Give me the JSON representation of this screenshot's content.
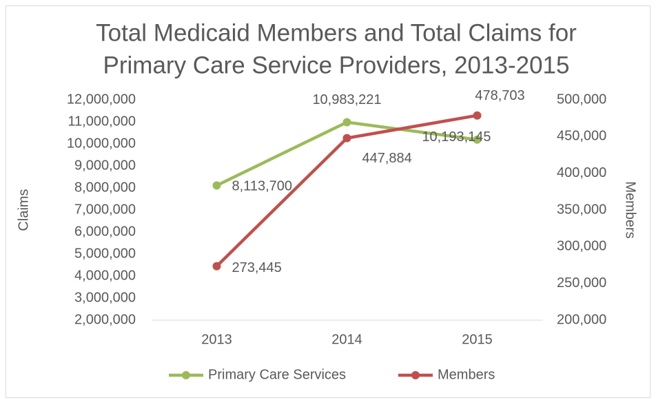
{
  "chart_data": {
    "type": "line",
    "title": [
      "Total Medicaid Members and Total Claims for",
      "Primary Care Service Providers, 2013-2015"
    ],
    "y_label": "Claims",
    "y2_label": "Members",
    "categories": [
      "2013",
      "2014",
      "2015"
    ],
    "series": [
      {
        "name": "Primary Care Services",
        "color": "#9bbb59",
        "values": [
          8113700,
          10983221,
          10193145
        ],
        "value_labels": [
          "8,113,700",
          "10,983,221",
          "10,193,145"
        ]
      },
      {
        "name": "Members",
        "color": "#c0504d",
        "axis": "y2",
        "values": [
          273445,
          447884,
          478703
        ],
        "value_labels": [
          "273,445",
          "447,884",
          "478,703"
        ]
      }
    ],
    "ylim": [
      2000000,
      12000000
    ],
    "yticks": [
      {
        "value": 2000000,
        "label": "2,000,000"
      },
      {
        "value": 3000000,
        "label": "3,000,000"
      },
      {
        "value": 4000000,
        "label": "4,000,000"
      },
      {
        "value": 5000000,
        "label": "5,000,000"
      },
      {
        "value": 6000000,
        "label": "6,000,000"
      },
      {
        "value": 7000000,
        "label": "7,000,000"
      },
      {
        "value": 8000000,
        "label": "8,000,000"
      },
      {
        "value": 9000000,
        "label": "9,000,000"
      },
      {
        "value": 10000000,
        "label": "10,000,000"
      },
      {
        "value": 11000000,
        "label": "11,000,000"
      },
      {
        "value": 12000000,
        "label": "12,000,000"
      }
    ],
    "y2lim": [
      200000,
      500000
    ],
    "y2ticks": [
      {
        "value": 200000,
        "label": "200,000"
      },
      {
        "value": 250000,
        "label": "250,000"
      },
      {
        "value": 300000,
        "label": "300,000"
      },
      {
        "value": 350000,
        "label": "350,000"
      },
      {
        "value": 400000,
        "label": "400,000"
      },
      {
        "value": 450000,
        "label": "450,000"
      },
      {
        "value": 500000,
        "label": "500,000"
      }
    ],
    "legend": "bottom"
  }
}
